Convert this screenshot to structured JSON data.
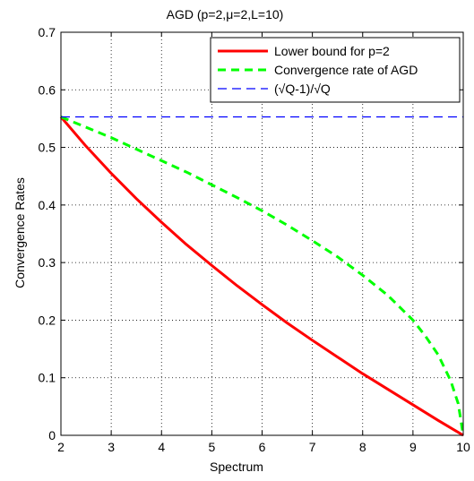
{
  "chart_data": {
    "type": "line",
    "title": "AGD (p=2,μ=2,L=10)",
    "xlabel": "Spectrum",
    "ylabel": "Convergence Rates",
    "xlim": [
      2,
      10
    ],
    "ylim": [
      0,
      0.7
    ],
    "xticks": [
      2,
      3,
      4,
      5,
      6,
      7,
      8,
      9,
      10
    ],
    "xtick_labels": [
      "2",
      "3",
      "4",
      "5",
      "6",
      "7",
      "8",
      "9",
      "10"
    ],
    "yticks": [
      0,
      0.1,
      0.2,
      0.3,
      0.4,
      0.5,
      0.6,
      0.7
    ],
    "ytick_labels": [
      "0",
      "0.1",
      "0.2",
      "0.3",
      "0.4",
      "0.5",
      "0.6",
      "0.7"
    ],
    "grid": true,
    "legend_position": "top-right",
    "series": [
      {
        "name": "Lower bound for p=2",
        "color": "#ff0000",
        "style": "solid",
        "x": [
          2,
          2.5,
          3,
          3.5,
          4,
          4.5,
          5,
          5.5,
          6,
          6.5,
          7,
          7.5,
          8,
          8.5,
          9,
          9.5,
          10
        ],
        "y": [
          0.553,
          0.502,
          0.455,
          0.411,
          0.37,
          0.331,
          0.295,
          0.26,
          0.227,
          0.195,
          0.165,
          0.136,
          0.107,
          0.08,
          0.053,
          0.026,
          0.0
        ]
      },
      {
        "name": "Convergence rate of AGD",
        "color": "#00ff00",
        "style": "dashed",
        "x": [
          2,
          2.5,
          3,
          3.5,
          4,
          4.5,
          5,
          5.5,
          6,
          6.5,
          7,
          7.5,
          8,
          8.5,
          9,
          9.25,
          9.5,
          9.75,
          9.9,
          10
        ],
        "y": [
          0.553,
          0.535,
          0.517,
          0.497,
          0.477,
          0.457,
          0.435,
          0.413,
          0.39,
          0.365,
          0.338,
          0.31,
          0.278,
          0.243,
          0.2,
          0.172,
          0.14,
          0.095,
          0.055,
          0.0
        ]
      },
      {
        "name": "(√Q-1)/√Q",
        "color": "#0000ff",
        "style": "dashed",
        "x": [
          2,
          10
        ],
        "y": [
          0.553,
          0.553
        ]
      }
    ]
  }
}
